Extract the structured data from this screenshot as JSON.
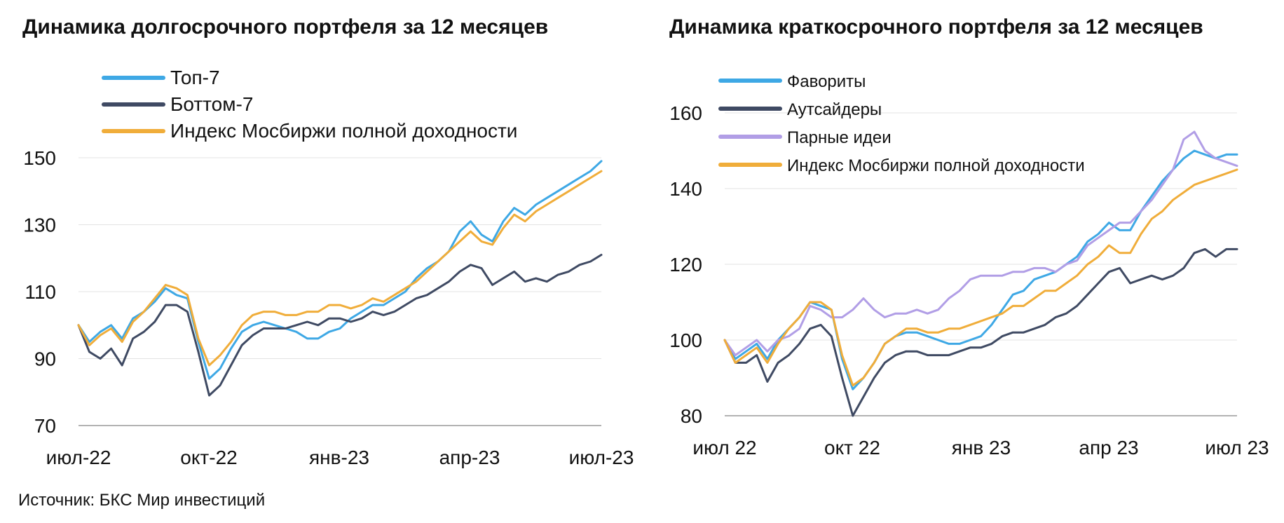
{
  "charts": [
    {
      "title": "Динамика долгосрочного портфеля за 12 месяцев",
      "chart_data": {
        "type": "line",
        "title": "Динамика долгосрочного портфеля за 12 месяцев",
        "xlabel": "",
        "ylabel": "",
        "ylim": [
          70,
          150
        ],
        "yticks": [
          70,
          90,
          110,
          130,
          150
        ],
        "xticks": [
          "июл-22",
          "окт-22",
          "янв-23",
          "апр-23",
          "июл-23"
        ],
        "legend_position": "top-left",
        "grid": "horizontal",
        "x": [
          0,
          0.25,
          0.5,
          0.75,
          1,
          1.25,
          1.5,
          1.75,
          2,
          2.25,
          2.5,
          2.75,
          3,
          3.25,
          3.5,
          3.75,
          4,
          4.25,
          4.5,
          4.75,
          5,
          5.25,
          5.5,
          5.75,
          6,
          6.25,
          6.5,
          6.75,
          7,
          7.25,
          7.5,
          7.75,
          8,
          8.25,
          8.5,
          8.75,
          9,
          9.25,
          9.5,
          9.75,
          10,
          10.25,
          10.5,
          10.75,
          11,
          11.25,
          11.5,
          11.75,
          12
        ],
        "series": [
          {
            "name": "Топ-7",
            "color": "#3ea8e5",
            "values": [
              100,
              95,
              98,
              100,
              96,
              102,
              104,
              107,
              111,
              109,
              108,
              95,
              84,
              87,
              93,
              98,
              100,
              101,
              100,
              99,
              98,
              96,
              96,
              98,
              99,
              102,
              104,
              106,
              106,
              108,
              110,
              114,
              117,
              119,
              122,
              128,
              131,
              127,
              125,
              131,
              135,
              133,
              136,
              138,
              140,
              142,
              144,
              146,
              149
            ]
          },
          {
            "name": "Боттом-7",
            "color": "#3f4a63",
            "values": [
              100,
              92,
              90,
              93,
              88,
              96,
              98,
              101,
              106,
              106,
              104,
              92,
              79,
              82,
              88,
              94,
              97,
              99,
              99,
              99,
              100,
              101,
              100,
              102,
              102,
              101,
              102,
              104,
              103,
              104,
              106,
              108,
              109,
              111,
              113,
              116,
              118,
              117,
              112,
              114,
              116,
              113,
              114,
              113,
              115,
              116,
              118,
              119,
              121
            ]
          },
          {
            "name": "Индекс Мосбиржи полной доходности",
            "color": "#f0ad3a",
            "values": [
              100,
              94,
              97,
              99,
              95,
              101,
              104,
              108,
              112,
              111,
              109,
              96,
              88,
              91,
              95,
              100,
              103,
              104,
              104,
              103,
              103,
              104,
              104,
              106,
              106,
              105,
              106,
              108,
              107,
              109,
              111,
              113,
              116,
              119,
              122,
              125,
              128,
              125,
              124,
              129,
              133,
              131,
              134,
              136,
              138,
              140,
              142,
              144,
              146
            ]
          }
        ]
      }
    },
    {
      "title": "Динамика краткосрочного портфеля за 12 месяцев",
      "chart_data": {
        "type": "line",
        "title": "Динамика краткосрочного портфеля за 12 месяцев",
        "xlabel": "",
        "ylabel": "",
        "ylim": [
          80,
          160
        ],
        "yticks": [
          80,
          100,
          120,
          140,
          160
        ],
        "xticks": [
          "июл 22",
          "окт 22",
          "янв 23",
          "апр 23",
          "июл 23"
        ],
        "legend_position": "top-left",
        "grid": "horizontal",
        "x": [
          0,
          0.25,
          0.5,
          0.75,
          1,
          1.25,
          1.5,
          1.75,
          2,
          2.25,
          2.5,
          2.75,
          3,
          3.25,
          3.5,
          3.75,
          4,
          4.25,
          4.5,
          4.75,
          5,
          5.25,
          5.5,
          5.75,
          6,
          6.25,
          6.5,
          6.75,
          7,
          7.25,
          7.5,
          7.75,
          8,
          8.25,
          8.5,
          8.75,
          9,
          9.25,
          9.5,
          9.75,
          10,
          10.25,
          10.5,
          10.75,
          11,
          11.25,
          11.5,
          11.75,
          12
        ],
        "series": [
          {
            "name": "Фавориты",
            "color": "#3ea8e5",
            "values": [
              100,
              95,
              97,
              99,
              95,
              100,
              103,
              106,
              110,
              109,
              108,
              95,
              87,
              90,
              94,
              99,
              101,
              102,
              102,
              101,
              100,
              99,
              99,
              100,
              101,
              104,
              108,
              112,
              113,
              116,
              117,
              118,
              120,
              122,
              126,
              128,
              131,
              129,
              129,
              134,
              138,
              142,
              145,
              148,
              150,
              149,
              148,
              149,
              149
            ]
          },
          {
            "name": "Аутсайдеры",
            "color": "#3f4a63",
            "values": [
              100,
              94,
              94,
              96,
              89,
              94,
              96,
              99,
              103,
              104,
              101,
              90,
              80,
              85,
              90,
              94,
              96,
              97,
              97,
              96,
              96,
              96,
              97,
              98,
              98,
              99,
              101,
              102,
              102,
              103,
              104,
              106,
              107,
              109,
              112,
              115,
              118,
              119,
              115,
              116,
              117,
              116,
              117,
              119,
              123,
              124,
              122,
              124,
              124
            ]
          },
          {
            "name": "Парные идеи",
            "color": "#b19ee6",
            "values": [
              100,
              96,
              98,
              100,
              97,
              100,
              101,
              103,
              109,
              108,
              106,
              106,
              108,
              111,
              108,
              106,
              107,
              107,
              108,
              107,
              108,
              111,
              113,
              116,
              117,
              117,
              117,
              118,
              118,
              119,
              119,
              118,
              120,
              121,
              125,
              127,
              129,
              131,
              131,
              134,
              137,
              141,
              145,
              153,
              155,
              150,
              148,
              147,
              146
            ]
          },
          {
            "name": "Индекс Мосбиржи полной доходности",
            "color": "#f0ad3a",
            "values": [
              100,
              94,
              96,
              98,
              94,
              99,
              103,
              106,
              110,
              110,
              108,
              96,
              88,
              90,
              94,
              99,
              101,
              103,
              103,
              102,
              102,
              103,
              103,
              104,
              105,
              106,
              107,
              109,
              109,
              111,
              113,
              113,
              115,
              117,
              120,
              122,
              125,
              123,
              123,
              128,
              132,
              134,
              137,
              139,
              141,
              142,
              143,
              144,
              145
            ]
          }
        ]
      }
    }
  ],
  "source": "Источник: БКС Мир инвестиций"
}
